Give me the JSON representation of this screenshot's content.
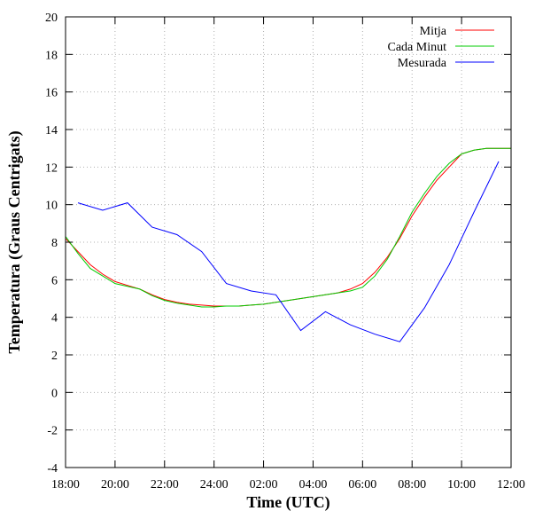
{
  "chart_data": {
    "type": "line",
    "title": "",
    "xlabel": "Time (UTC)",
    "ylabel": "Temperatura (Graus Centrigats)",
    "xlim": [
      0,
      18
    ],
    "ylim": [
      -4,
      20
    ],
    "x_ticks": [
      {
        "value": 0,
        "label": "18:00"
      },
      {
        "value": 2,
        "label": "20:00"
      },
      {
        "value": 4,
        "label": "22:00"
      },
      {
        "value": 6,
        "label": "24:00"
      },
      {
        "value": 8,
        "label": "02:00"
      },
      {
        "value": 10,
        "label": "04:00"
      },
      {
        "value": 12,
        "label": "06:00"
      },
      {
        "value": 14,
        "label": "08:00"
      },
      {
        "value": 16,
        "label": "10:00"
      },
      {
        "value": 18,
        "label": "12:00"
      }
    ],
    "y_ticks": [
      {
        "value": -4,
        "label": "-4"
      },
      {
        "value": -2,
        "label": "-2"
      },
      {
        "value": 0,
        "label": "0"
      },
      {
        "value": 2,
        "label": "2"
      },
      {
        "value": 4,
        "label": "4"
      },
      {
        "value": 6,
        "label": "6"
      },
      {
        "value": 8,
        "label": "8"
      },
      {
        "value": 10,
        "label": "10"
      },
      {
        "value": 12,
        "label": "12"
      },
      {
        "value": 14,
        "label": "14"
      },
      {
        "value": 16,
        "label": "16"
      },
      {
        "value": 18,
        "label": "18"
      },
      {
        "value": 20,
        "label": "20"
      }
    ],
    "grid": true,
    "legend_position": "top-right",
    "series": [
      {
        "name": "Mitja",
        "color": "#ff0000",
        "x": [
          0,
          0.5,
          1,
          1.5,
          2,
          2.5,
          3,
          3.5,
          4,
          4.5,
          5,
          5.5,
          6,
          6.5,
          7,
          7.5,
          8,
          8.5,
          9,
          9.5,
          10,
          10.5,
          11,
          11.5,
          12,
          12.5,
          13,
          13.5,
          14,
          14.5,
          15,
          15.5,
          16,
          16.5,
          17,
          17.5,
          18
        ],
        "y": [
          8.2,
          7.5,
          6.8,
          6.3,
          5.9,
          5.7,
          5.5,
          5.2,
          4.95,
          4.8,
          4.7,
          4.65,
          4.6,
          4.6,
          4.6,
          4.65,
          4.7,
          4.8,
          4.9,
          5.0,
          5.1,
          5.2,
          5.3,
          5.5,
          5.8,
          6.4,
          7.2,
          8.2,
          9.4,
          10.4,
          11.3,
          12.0,
          12.7,
          12.9,
          13.0,
          13.0,
          13.0
        ]
      },
      {
        "name": "Cada Minut",
        "color": "#00cc00",
        "x": [
          0,
          0.5,
          1,
          1.5,
          2,
          2.5,
          3,
          3.5,
          4,
          4.5,
          5,
          5.5,
          6,
          6.5,
          7,
          7.5,
          8,
          8.5,
          9,
          9.5,
          10,
          10.5,
          11,
          11.5,
          12,
          12.5,
          13,
          13.5,
          14,
          14.5,
          15,
          15.5,
          16,
          16.5,
          17,
          17.5,
          18
        ],
        "y": [
          8.3,
          7.4,
          6.6,
          6.2,
          5.8,
          5.65,
          5.5,
          5.15,
          4.9,
          4.75,
          4.65,
          4.55,
          4.55,
          4.6,
          4.6,
          4.65,
          4.7,
          4.8,
          4.9,
          5.0,
          5.1,
          5.2,
          5.3,
          5.4,
          5.6,
          6.2,
          7.1,
          8.3,
          9.6,
          10.6,
          11.5,
          12.2,
          12.7,
          12.9,
          13.0,
          13.0,
          13.0
        ]
      },
      {
        "name": "Mesurada",
        "color": "#0000ff",
        "x": [
          0.5,
          1.5,
          2.5,
          3.5,
          4.5,
          5.5,
          6.5,
          7.5,
          8.5,
          9.5,
          10.5,
          11.5,
          12.5,
          13.5,
          14.5,
          15.5,
          16.5,
          17.5
        ],
        "y": [
          10.1,
          9.7,
          10.1,
          8.8,
          8.4,
          7.5,
          5.8,
          5.4,
          5.2,
          3.3,
          4.3,
          3.6,
          3.1,
          2.7,
          4.5,
          6.8,
          9.6,
          12.3
        ]
      }
    ]
  }
}
